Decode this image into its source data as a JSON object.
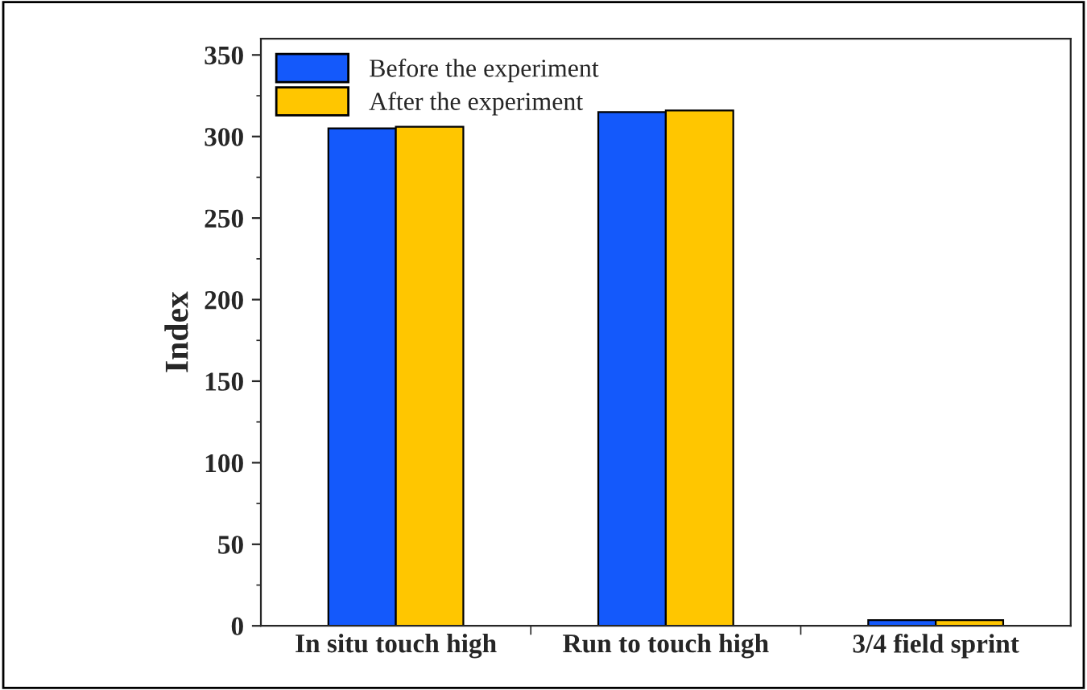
{
  "chart_data": {
    "type": "bar",
    "ylabel": "Index",
    "categories": [
      "In situ touch high",
      "Run to touch high",
      "3/4 field sprint"
    ],
    "series": [
      {
        "name": "Before the experiment",
        "color": "#1459fb",
        "values": [
          305,
          315,
          3.5
        ]
      },
      {
        "name": "After the experiment",
        "color": "#ffc600",
        "values": [
          306,
          316,
          3.5
        ]
      }
    ],
    "ylim": [
      0,
      360
    ],
    "yticks": [
      0,
      50,
      100,
      150,
      200,
      250,
      300,
      350
    ],
    "grid": false,
    "legend": "top left"
  }
}
